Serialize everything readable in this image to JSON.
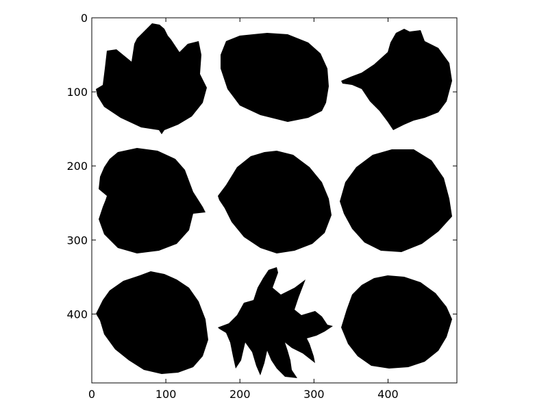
{
  "chart_data": {
    "type": "image",
    "title": "",
    "xlabel": "",
    "ylabel": "",
    "xlim": [
      0,
      493
    ],
    "ylim": [
      493,
      0
    ],
    "grid": false,
    "legend": "none",
    "colormap": "gray (binary leaf silhouettes, black on white)",
    "x_ticks": [
      {
        "value": 0,
        "label": "0"
      },
      {
        "value": 100,
        "label": "100"
      },
      {
        "value": 200,
        "label": "200"
      },
      {
        "value": 300,
        "label": "300"
      },
      {
        "value": 400,
        "label": "400"
      }
    ],
    "y_ticks": [
      {
        "value": 0,
        "label": "0"
      },
      {
        "value": 100,
        "label": "100"
      },
      {
        "value": 200,
        "label": "200"
      },
      {
        "value": 300,
        "label": "300"
      },
      {
        "value": 400,
        "label": "400"
      }
    ],
    "leaves": [
      {
        "name": "maple-like leaf",
        "center": [
          82,
          90
        ]
      },
      {
        "name": "oval serrated leaf",
        "center": [
          245,
          80
        ]
      },
      {
        "name": "wavy-lobed leaf",
        "center": [
          425,
          95
        ]
      },
      {
        "name": "notched round leaf",
        "center": [
          80,
          250
        ]
      },
      {
        "name": "rounded ovate leaf",
        "center": [
          245,
          260
        ]
      },
      {
        "name": "smooth ovate leaf",
        "center": [
          405,
          250
        ]
      },
      {
        "name": "toothed oval leaf",
        "center": [
          75,
          440
        ]
      },
      {
        "name": "pin oak leaf",
        "center": [
          250,
          440
        ]
      },
      {
        "name": "serrated elliptic leaf",
        "center": [
          415,
          440
        ]
      }
    ]
  }
}
